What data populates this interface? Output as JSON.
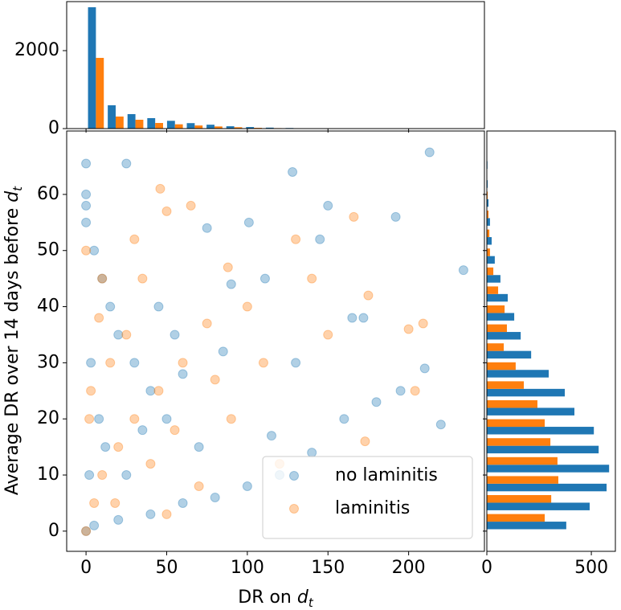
{
  "chart_data": [
    {
      "type": "scatter",
      "xlabel": [
        "DR on ",
        "d",
        "t"
      ],
      "ylabel": [
        "Average DR over 14 days before ",
        "d",
        "t"
      ],
      "xlim": [
        -12,
        247
      ],
      "ylim": [
        -3.6,
        71.3
      ],
      "xticks": [
        0,
        50,
        100,
        150,
        200
      ],
      "yticks": [
        0,
        10,
        20,
        30,
        40,
        50,
        60
      ],
      "legend": "lower right",
      "series": [
        {
          "name": "no laminitis",
          "color": "#1f77b4",
          "x": [
            213,
            0,
            25,
            128,
            234,
            0,
            0,
            0,
            5,
            10,
            15,
            20,
            30,
            40,
            50,
            60,
            75,
            90,
            101,
            111,
            145,
            150,
            192,
            195,
            220,
            210,
            180,
            160,
            140,
            120,
            100,
            80,
            60,
            40,
            20,
            5,
            0,
            2,
            8,
            3,
            12,
            25,
            35,
            45,
            55,
            70,
            85,
            130,
            165,
            172,
            115
          ],
          "y": [
            67.5,
            65.5,
            65.5,
            64,
            46.5,
            60,
            58,
            55,
            50,
            45,
            40,
            35,
            30,
            25,
            20,
            28,
            54,
            44,
            55,
            45,
            52,
            58,
            56,
            25,
            19,
            29,
            23,
            20,
            14,
            10,
            8,
            6,
            5,
            3,
            2,
            1,
            0,
            10,
            20,
            30,
            15,
            10,
            18,
            40,
            35,
            15,
            32,
            30,
            38,
            38,
            17
          ]
        },
        {
          "name": "laminitis",
          "color": "#ff7f0e",
          "x": [
            46,
            0,
            10,
            30,
            50,
            65,
            130,
            166,
            175,
            200,
            209,
            173,
            204,
            100,
            88,
            75,
            60,
            45,
            30,
            20,
            10,
            5,
            0,
            3,
            15,
            25,
            40,
            55,
            70,
            90,
            110,
            120,
            150,
            140,
            35,
            8,
            2,
            18,
            50,
            80
          ],
          "y": [
            61,
            50,
            45,
            52,
            57,
            58,
            52,
            56,
            42,
            36,
            37,
            16,
            25,
            40,
            47,
            37,
            30,
            25,
            20,
            15,
            10,
            5,
            0,
            25,
            30,
            35,
            12,
            18,
            8,
            20,
            30,
            12,
            35,
            45,
            45,
            38,
            20,
            5,
            3,
            27
          ]
        }
      ]
    },
    {
      "type": "histogram",
      "xlim": [
        -12,
        247
      ],
      "ylim": [
        0,
        3258
      ],
      "xticks": [
        0,
        50,
        100,
        150,
        200
      ],
      "yticks": [
        0,
        2000
      ],
      "bins": [
        0,
        12.25,
        24.5,
        36.75,
        49,
        61.25,
        73.5,
        85.75,
        98,
        110.25,
        122.5,
        134.75,
        147,
        159.25,
        171.5,
        183.75,
        196,
        208.25,
        220.5,
        232.75,
        245
      ],
      "series": [
        {
          "name": "no laminitis",
          "color": "#1f77b4",
          "values": [
            3113,
            598,
            371,
            268,
            200,
            140,
            100,
            60,
            40,
            25,
            15,
            10,
            6,
            4,
            2,
            1,
            1,
            0,
            1,
            1
          ]
        },
        {
          "name": "laminitis",
          "color": "#ff7f0e",
          "values": [
            1814,
            309,
            227,
            144,
            110,
            80,
            55,
            35,
            20,
            12,
            8,
            5,
            3,
            2,
            1,
            0,
            0,
            0,
            0,
            0
          ]
        }
      ]
    },
    {
      "type": "histogram",
      "orientation": "horizontal",
      "xlim": [
        0,
        615
      ],
      "ylim": [
        -3.6,
        71.3
      ],
      "xticks": [
        0,
        500
      ],
      "yticks": [
        0,
        10,
        20,
        30,
        40,
        50,
        60
      ],
      "bins": [
        0,
        3.38,
        6.76,
        10.14,
        13.52,
        16.9,
        20.28,
        23.66,
        27.04,
        30.42,
        33.8,
        37.18,
        40.56,
        43.94,
        47.32,
        50.7,
        54.08,
        57.46,
        60.84,
        64.22,
        67.6
      ],
      "series": [
        {
          "name": "no laminitis",
          "color": "#1f77b4",
          "values": [
            380,
            492,
            573,
            585,
            535,
            512,
            419,
            373,
            296,
            212,
            162,
            131,
            100,
            65,
            38,
            23,
            15,
            8,
            4,
            3
          ]
        },
        {
          "name": "laminitis",
          "color": "#ff7f0e",
          "values": [
            277,
            308,
            342,
            338,
            304,
            277,
            242,
            177,
            138,
            81,
            96,
            85,
            54,
            31,
            15,
            12,
            8,
            4,
            1,
            0
          ]
        }
      ]
    }
  ]
}
